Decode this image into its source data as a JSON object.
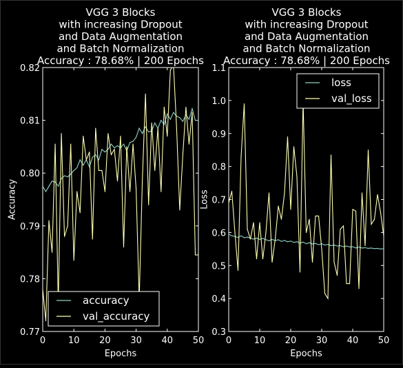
{
  "chart_data": [
    {
      "type": "line",
      "title_lines": [
        "VGG 3 Blocks",
        "with increasing Dropout",
        "and Data Augmentation",
        "and Batch Normalization",
        "Accuracy : 78.68% | 200 Epochs"
      ],
      "xlabel": "Epochs",
      "ylabel": "Accuracy",
      "xlim": [
        0,
        50
      ],
      "ylim": [
        0.77,
        0.82
      ],
      "xticks": [
        "0",
        "10",
        "20",
        "30",
        "40",
        "50"
      ],
      "yticks": [
        "0.77",
        "0.78",
        "0.79",
        "0.80",
        "0.81",
        "0.82"
      ],
      "grid": false,
      "legend_position": "lower left",
      "series": [
        {
          "name": "accuracy",
          "color": "#8dd3c7",
          "x": [
            0,
            1,
            2,
            3,
            4,
            5,
            6,
            7,
            8,
            9,
            10,
            11,
            12,
            13,
            14,
            15,
            16,
            17,
            18,
            19,
            20,
            21,
            22,
            23,
            24,
            25,
            26,
            27,
            28,
            29,
            30,
            31,
            32,
            33,
            34,
            35,
            36,
            37,
            38,
            39,
            40,
            41,
            42,
            43,
            44,
            45,
            46,
            47,
            48,
            49,
            50
          ],
          "values": [
            0.7975,
            0.7965,
            0.7975,
            0.7985,
            0.7983,
            0.7975,
            0.799,
            0.7995,
            0.7993,
            0.7998,
            0.8005,
            0.801,
            0.8025,
            0.8015,
            0.8025,
            0.8012,
            0.803,
            0.8035,
            0.8025,
            0.8045,
            0.804,
            0.8045,
            0.8055,
            0.8048,
            0.8052,
            0.8048,
            0.8055,
            0.8042,
            0.8058,
            0.806,
            0.8068,
            0.8085,
            0.8075,
            0.8088,
            0.8078,
            0.808,
            0.8095,
            0.8085,
            0.81,
            0.8092,
            0.8112,
            0.8102,
            0.8115,
            0.8108,
            0.8105,
            0.8098,
            0.811,
            0.8102,
            0.8122,
            0.81,
            0.81
          ]
        },
        {
          "name": "val_accuracy",
          "color": "#ffffb3",
          "x": [
            0,
            1,
            2,
            3,
            4,
            5,
            6,
            7,
            8,
            9,
            10,
            11,
            12,
            13,
            14,
            15,
            16,
            17,
            18,
            19,
            20,
            21,
            22,
            23,
            24,
            25,
            26,
            27,
            28,
            29,
            30,
            31,
            32,
            33,
            34,
            35,
            36,
            37,
            38,
            39,
            40,
            41,
            42,
            43,
            44,
            45,
            46,
            47,
            48,
            49,
            50
          ],
          "values": [
            0.778,
            0.772,
            0.791,
            0.785,
            0.8055,
            0.775,
            0.8075,
            0.788,
            0.79,
            0.8055,
            0.7835,
            0.7965,
            0.7925,
            0.807,
            0.8025,
            0.804,
            0.7875,
            0.8085,
            0.8005,
            0.8005,
            0.7965,
            0.8075,
            0.8035,
            0.8045,
            0.7985,
            0.807,
            0.786,
            0.805,
            0.7965,
            0.8055,
            0.797,
            0.776,
            0.7985,
            0.815,
            0.794,
            0.8095,
            0.8005,
            0.8085,
            0.7965,
            0.8125,
            0.807,
            0.8195,
            0.8205,
            0.8085,
            0.793,
            0.8035,
            0.8125,
            0.8055,
            0.8115,
            0.7845,
            0.7845
          ]
        }
      ]
    },
    {
      "type": "line",
      "title_lines": [
        "VGG 3 Blocks",
        "with increasing Dropout",
        "and Data Augmentation",
        "and Batch Normalization",
        "Accuracy : 78.68% | 200 Epochs"
      ],
      "xlabel": "Epochs",
      "ylabel": "Loss",
      "xlim": [
        0,
        50
      ],
      "ylim": [
        0.3,
        1.1
      ],
      "xticks": [
        "0",
        "10",
        "20",
        "30",
        "40",
        "50"
      ],
      "yticks": [
        "0.3",
        "0.4",
        "0.5",
        "0.6",
        "0.7",
        "0.8",
        "0.9",
        "1.0",
        "1.1"
      ],
      "grid": false,
      "legend_position": "upper right",
      "series": [
        {
          "name": "loss",
          "color": "#8dd3c7",
          "x": [
            0,
            1,
            2,
            3,
            4,
            5,
            6,
            7,
            8,
            9,
            10,
            11,
            12,
            13,
            14,
            15,
            16,
            17,
            18,
            19,
            20,
            21,
            22,
            23,
            24,
            25,
            26,
            27,
            28,
            29,
            30,
            31,
            32,
            33,
            34,
            35,
            36,
            37,
            38,
            39,
            40,
            41,
            42,
            43,
            44,
            45,
            46,
            47,
            48,
            49,
            50
          ],
          "values": [
            0.595,
            0.59,
            0.588,
            0.585,
            0.59,
            0.584,
            0.586,
            0.583,
            0.58,
            0.583,
            0.579,
            0.582,
            0.578,
            0.575,
            0.579,
            0.575,
            0.578,
            0.573,
            0.576,
            0.572,
            0.574,
            0.57,
            0.572,
            0.568,
            0.571,
            0.566,
            0.569,
            0.565,
            0.567,
            0.563,
            0.566,
            0.562,
            0.564,
            0.56,
            0.562,
            0.559,
            0.56,
            0.557,
            0.559,
            0.556,
            0.557,
            0.553,
            0.556,
            0.553,
            0.554,
            0.552,
            0.553,
            0.551,
            0.552,
            0.55,
            0.551
          ]
        },
        {
          "name": "val_loss",
          "color": "#ffffb3",
          "x": [
            0,
            1,
            2,
            3,
            4,
            5,
            6,
            7,
            8,
            9,
            10,
            11,
            12,
            13,
            14,
            15,
            16,
            17,
            18,
            19,
            20,
            21,
            22,
            23,
            24,
            25,
            26,
            27,
            28,
            29,
            30,
            31,
            32,
            33,
            34,
            35,
            36,
            37,
            38,
            39,
            40,
            41,
            42,
            43,
            44,
            45,
            46,
            47,
            48,
            49,
            50
          ],
          "values": [
            0.69,
            0.725,
            0.6,
            0.485,
            0.83,
            0.99,
            0.61,
            0.58,
            0.63,
            0.52,
            0.63,
            0.52,
            0.6,
            0.72,
            0.51,
            0.58,
            0.68,
            0.64,
            0.72,
            0.89,
            0.67,
            0.86,
            0.77,
            0.48,
            1.0,
            0.6,
            0.64,
            0.51,
            0.65,
            0.65,
            0.55,
            0.415,
            0.4,
            0.835,
            0.51,
            0.47,
            0.61,
            0.62,
            0.445,
            0.445,
            0.67,
            0.665,
            0.43,
            0.72,
            0.56,
            0.85,
            0.625,
            0.64,
            0.715,
            0.66,
            0.59
          ]
        }
      ]
    }
  ]
}
